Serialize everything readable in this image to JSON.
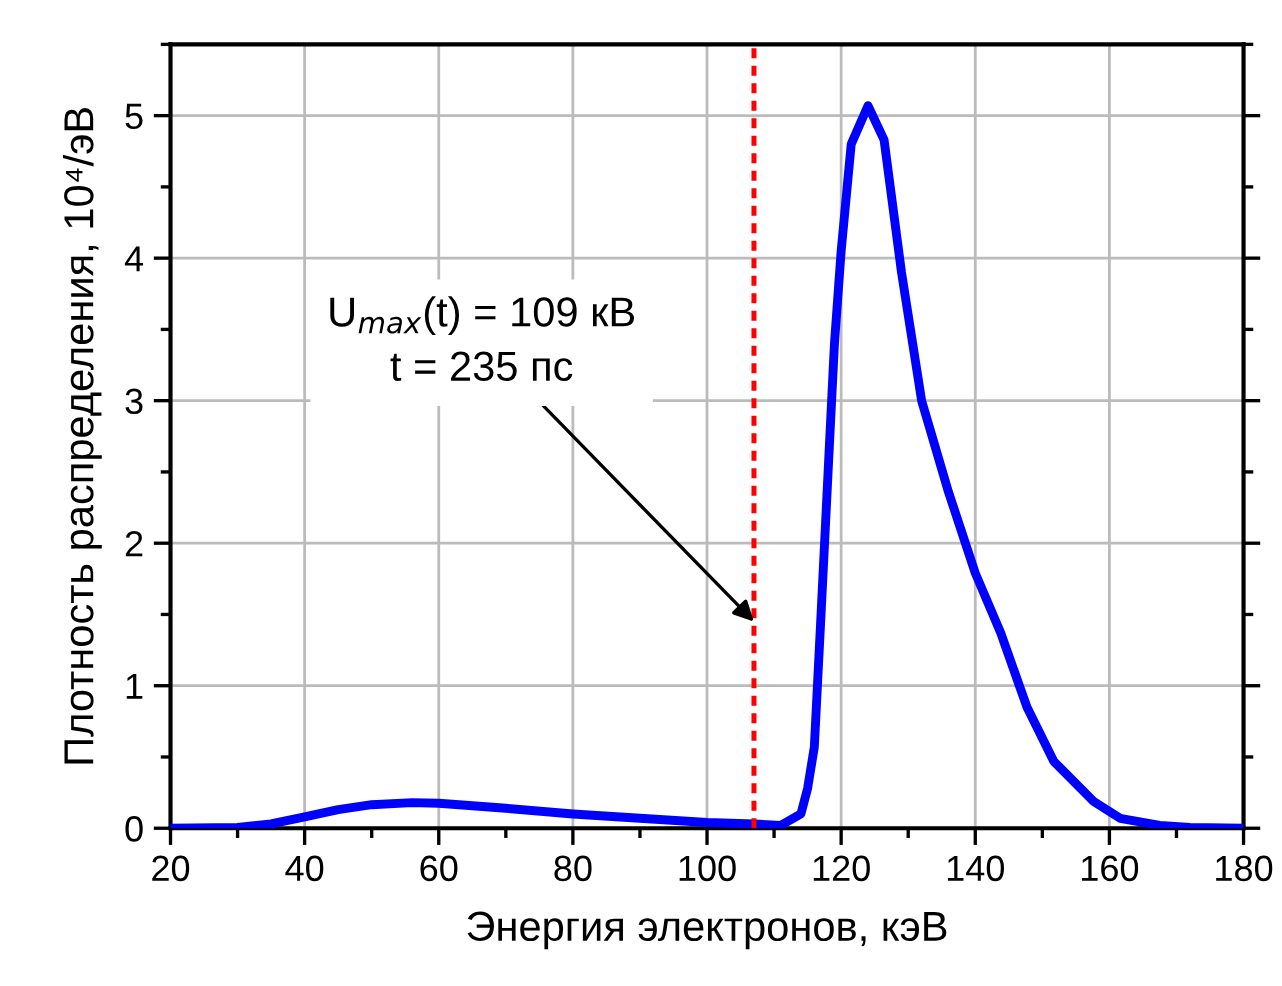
{
  "chart_data": {
    "type": "line",
    "xlabel": "Энергия электронов, кэВ",
    "ylabel": "Плотность распределения, 10⁴/эВ",
    "series": [
      {
        "color": "#0000ff",
        "x": [
          20,
          30,
          35,
          40,
          45,
          50,
          56,
          60,
          70,
          80,
          90,
          100,
          107,
          111,
          114,
          115,
          116,
          117,
          118,
          119,
          120,
          121.5,
          124,
          126.4,
          129,
          132,
          136,
          140,
          143.8,
          147.7,
          151.7,
          157.6,
          161.6,
          167.5,
          172,
          180
        ],
        "values": [
          0,
          0.005,
          0.03,
          0.08,
          0.13,
          0.165,
          0.18,
          0.175,
          0.14,
          0.1,
          0.07,
          0.04,
          0.03,
          0.02,
          0.1,
          0.28,
          0.57,
          1.5,
          2.45,
          3.4,
          4.05,
          4.8,
          5.07,
          4.83,
          3.9,
          3.0,
          2.36,
          1.79,
          1.37,
          0.85,
          0.47,
          0.19,
          0.07,
          0.02,
          0.005,
          0
        ]
      }
    ],
    "xlim": [
      20,
      180
    ],
    "xticks": [
      20,
      40,
      60,
      80,
      100,
      120,
      140,
      160,
      180
    ],
    "ylim": [
      0,
      5.5
    ],
    "yticks": [
      0,
      1,
      2,
      3,
      4,
      5
    ],
    "grid": true,
    "line_style": "solid",
    "ref_lines": [
      {
        "axis": "x",
        "value": 107,
        "color": "#ff0000",
        "line_style": "dotted"
      }
    ],
    "annotations": [
      {
        "text": "U$_{max}$(t) = 109 кВ\nt = 235 пс",
        "x": 107,
        "y": 1.45
      }
    ]
  }
}
